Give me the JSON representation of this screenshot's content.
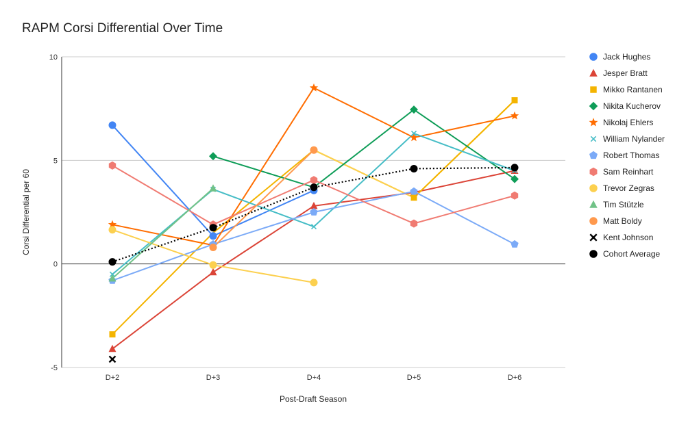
{
  "chart_data": {
    "type": "line",
    "title": "RAPM Corsi Differential Over Time",
    "xlabel": "Post-Draft Season",
    "ylabel": "Corsi Differential per 60",
    "categories": [
      "D+2",
      "D+3",
      "D+4",
      "D+5",
      "D+6"
    ],
    "ylim": [
      -5,
      10
    ],
    "yticks": [
      -5,
      0,
      5,
      10
    ],
    "grid": true,
    "legend_position": "right",
    "series": [
      {
        "name": "Jack Hughes",
        "color": "#4285f4",
        "marker": "circle",
        "line": "solid",
        "values": [
          6.7,
          1.35,
          3.55,
          null,
          null
        ]
      },
      {
        "name": "Jesper Bratt",
        "color": "#db4437",
        "marker": "triangle",
        "line": "solid",
        "values": [
          -4.1,
          -0.4,
          2.8,
          3.45,
          4.5
        ]
      },
      {
        "name": "Mikko Rantanen",
        "color": "#f4b400",
        "marker": "square",
        "line": "solid",
        "values": [
          -3.4,
          null,
          null,
          3.2,
          7.9
        ]
      },
      {
        "name": "Nikita Kucherov",
        "color": "#0f9d58",
        "marker": "diamond",
        "line": "solid",
        "values": [
          null,
          5.2,
          3.7,
          7.45,
          4.1
        ]
      },
      {
        "name": "Nikolaj Ehlers",
        "color": "#ff6d01",
        "marker": "star",
        "line": "solid",
        "values": [
          1.9,
          0.9,
          8.5,
          6.1,
          7.15
        ]
      },
      {
        "name": "William Nylander",
        "color": "#46bdc6",
        "marker": "x",
        "line": "solid",
        "values": [
          -0.5,
          3.6,
          1.8,
          6.3,
          4.5
        ]
      },
      {
        "name": "Robert Thomas",
        "color": "#7baaf7",
        "marker": "pentagon",
        "line": "solid",
        "values": [
          -0.8,
          0.95,
          2.5,
          3.5,
          0.95
        ]
      },
      {
        "name": "Sam Reinhart",
        "color": "#f07b72",
        "marker": "hexagon",
        "line": "solid",
        "values": [
          4.75,
          1.9,
          4.05,
          1.95,
          3.3
        ]
      },
      {
        "name": "Trevor Zegras",
        "color": "#fcd04f",
        "marker": "circle",
        "line": "solid",
        "values": [
          1.65,
          -0.05,
          -0.9,
          null,
          null
        ]
      },
      {
        "name": "Tim Stützle",
        "color": "#71c287",
        "marker": "triangle",
        "line": "solid",
        "values": [
          -0.7,
          3.65,
          null,
          null,
          null
        ]
      },
      {
        "name": "Matt Boldy",
        "color": "#ff994d",
        "marker": "circle",
        "line": "solid",
        "values": [
          null,
          0.8,
          5.5,
          null,
          null
        ]
      },
      {
        "name": "Kent Johnson",
        "color": "#000000",
        "marker": "cross",
        "line": "solid",
        "values": [
          -4.6,
          null,
          null,
          null,
          null
        ]
      },
      {
        "name": "Cohort Average",
        "color": "#000000",
        "marker": "circle",
        "line": "dotted",
        "values": [
          0.1,
          1.75,
          3.7,
          4.6,
          4.65
        ]
      }
    ]
  },
  "extra_segments": [
    {
      "series": "Mikko Rantanen",
      "color": "#f4b400",
      "values": [
        -3.4,
        1.5,
        5.5,
        3.2,
        7.9
      ]
    },
    {
      "series": "Trevor Zegras",
      "color": "#fcd04f",
      "values": [
        null,
        null,
        5.5,
        3.2,
        null
      ]
    }
  ]
}
